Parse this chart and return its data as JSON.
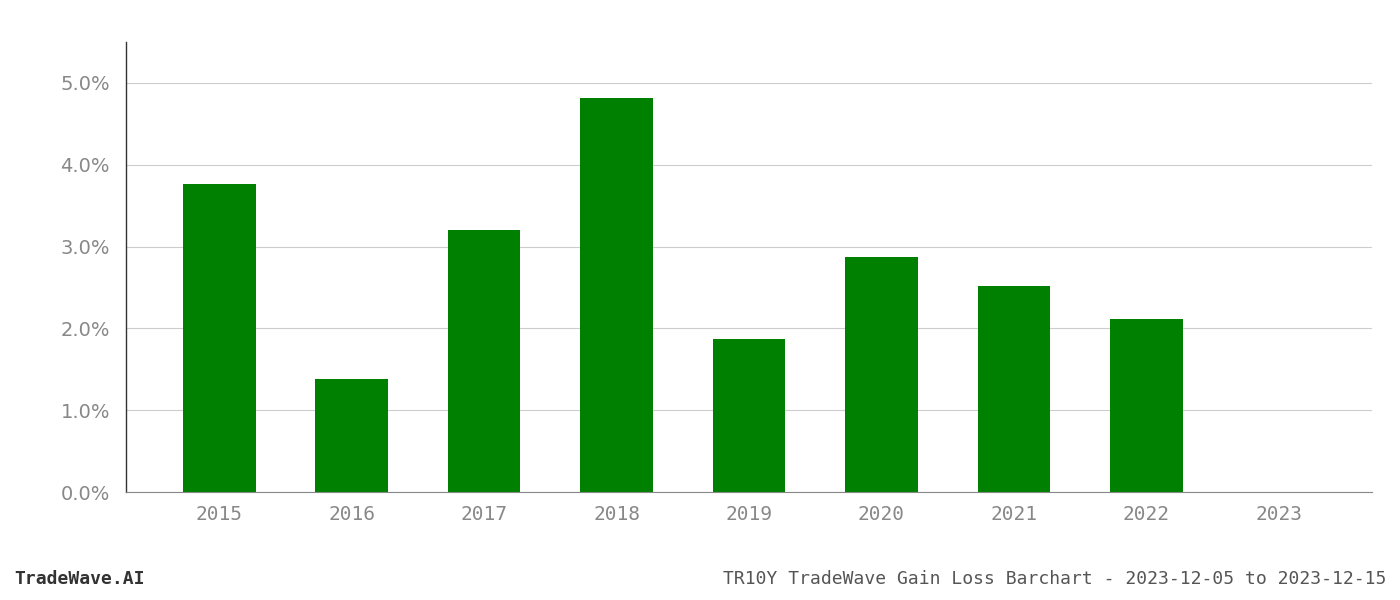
{
  "categories": [
    "2015",
    "2016",
    "2017",
    "2018",
    "2019",
    "2020",
    "2021",
    "2022",
    "2023"
  ],
  "values": [
    0.0377,
    0.0138,
    0.032,
    0.0482,
    0.0187,
    0.0287,
    0.0252,
    0.0212,
    0.0
  ],
  "bar_color": "#008000",
  "background_color": "#ffffff",
  "grid_color": "#cccccc",
  "ylim": [
    0,
    0.055
  ],
  "yticks": [
    0.0,
    0.01,
    0.02,
    0.03,
    0.04,
    0.05
  ],
  "footer_left": "TradeWave.AI",
  "footer_right": "TR10Y TradeWave Gain Loss Barchart - 2023-12-05 to 2023-12-15",
  "footer_fontsize": 13,
  "tick_fontsize": 14,
  "bar_width": 0.55
}
